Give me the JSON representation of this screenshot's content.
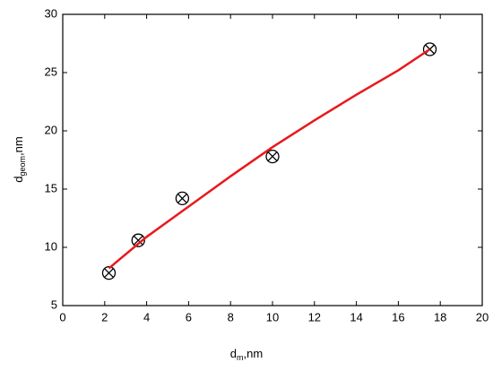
{
  "chart_data": {
    "type": "scatter",
    "x_label": {
      "main": "d",
      "sub": "m",
      "unit": ",nm"
    },
    "y_label": {
      "main": "d",
      "sub": "geom",
      "unit": ",nm"
    },
    "series": [
      {
        "kind": "points",
        "color": "#000000",
        "x": [
          2.2,
          3.6,
          5.7,
          10,
          17.5
        ],
        "values": [
          7.8,
          10.6,
          14.2,
          17.8,
          27
        ]
      },
      {
        "kind": "line",
        "color": "#e8191c",
        "x": [
          2.2,
          4,
          6,
          8,
          10,
          12,
          14,
          16,
          17.5
        ],
        "values": [
          8.2,
          10.9,
          13.5,
          16.1,
          18.6,
          20.9,
          23.1,
          25.2,
          27
        ]
      }
    ],
    "xlim": [
      0,
      20
    ],
    "ylim": [
      5,
      30
    ],
    "xticks": [
      0,
      2,
      4,
      6,
      8,
      10,
      12,
      14,
      16,
      18,
      20
    ],
    "yticks": [
      5,
      10,
      15,
      20,
      25,
      30
    ]
  }
}
